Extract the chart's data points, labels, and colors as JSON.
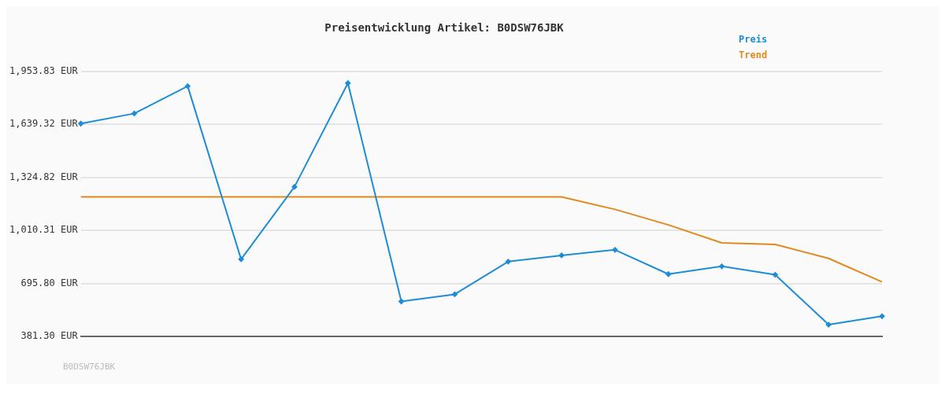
{
  "chart_data": {
    "type": "line",
    "title": "Preisentwicklung Artikel: B0DSW76JBK",
    "categories": [
      null,
      null,
      null,
      null,
      null,
      null,
      null,
      null,
      null,
      null,
      null,
      null,
      null,
      null,
      null,
      null
    ],
    "series": [
      {
        "name": "Preis",
        "color": "#1f8dd6",
        "marker": "diamond",
        "values": [
          1644,
          1704,
          1866,
          839,
          1269,
          1884,
          589,
          631,
          825,
          862,
          895,
          751,
          797,
          747,
          451,
          501
        ]
      },
      {
        "name": "Trend",
        "color": "#e08a1e",
        "marker": "none",
        "values": [
          1209,
          1209,
          1209,
          1209,
          1209,
          1209,
          1209,
          1209,
          1209,
          1209,
          1135,
          1043,
          936,
          927,
          844,
          705
        ]
      }
    ],
    "ylim": [
      381.3,
      1953.83
    ],
    "yticks": [
      {
        "value": 381.3,
        "label": "381.30 EUR"
      },
      {
        "value": 695.8,
        "label": "695.80 EUR"
      },
      {
        "value": 1010.31,
        "label": "1,010.31 EUR"
      },
      {
        "value": 1324.82,
        "label": "1,324.82 EUR"
      },
      {
        "value": 1639.32,
        "label": "1,639.32 EUR"
      },
      {
        "value": 1953.83,
        "label": "1,953.83 EUR"
      }
    ],
    "grid": "y",
    "legend": "top right",
    "tick_labels": "y",
    "annotations": [
      "B0DSW76JBK"
    ]
  }
}
